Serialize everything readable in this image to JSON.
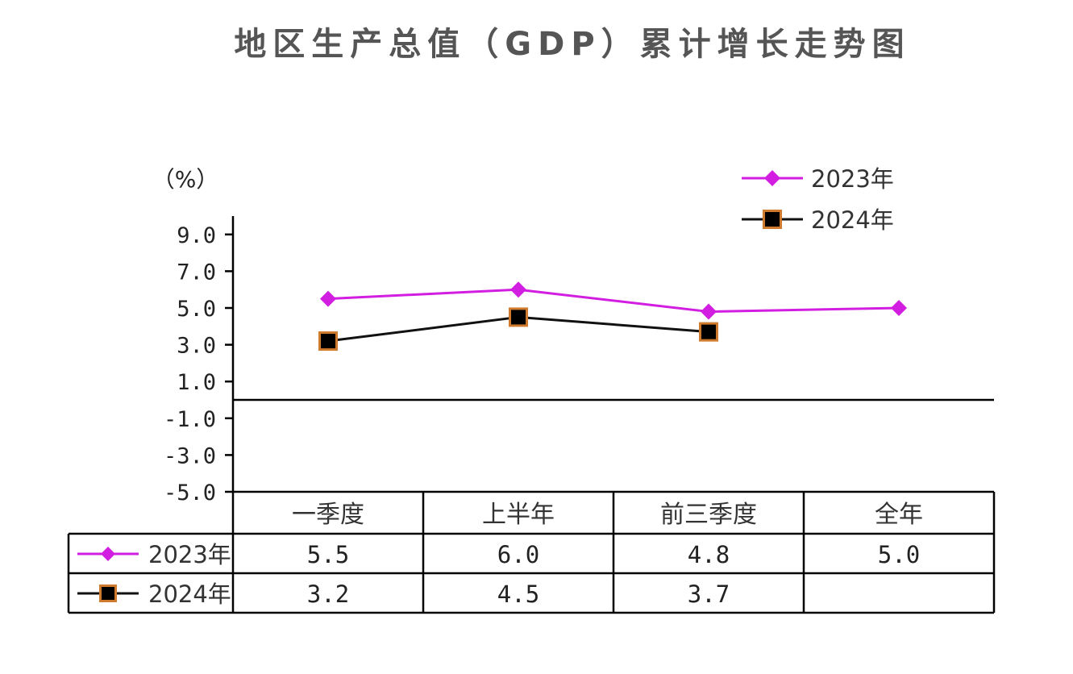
{
  "title": "地区生产总值（GDP）累计增长走势图",
  "unit_label": "（%）",
  "colors": {
    "series_2023": "#d21ee0",
    "series_2024_line": "#111111",
    "series_2024_marker_fill": "#000000",
    "series_2024_marker_border": "#d07a2e",
    "axis": "#000000",
    "title": "#555555"
  },
  "chart_data": {
    "type": "line",
    "title": "地区生产总值（GDP）累计增长走势图",
    "ylabel": "（%）",
    "categories": [
      "一季度",
      "上半年",
      "前三季度",
      "全年"
    ],
    "ylim": [
      -5.0,
      10.0
    ],
    "yticks": [
      "9.0",
      "7.0",
      "5.0",
      "3.0",
      "1.0",
      "-1.0",
      "-3.0",
      "-5.0"
    ],
    "ytick_values": [
      9.0,
      7.0,
      5.0,
      3.0,
      1.0,
      -1.0,
      -3.0,
      -5.0
    ],
    "grid": false,
    "legend_position": "top-right",
    "series": [
      {
        "name": "2023年",
        "marker": "diamond",
        "values": [
          5.5,
          6.0,
          4.8,
          5.0
        ],
        "labels": [
          "5.5",
          "6.0",
          "4.8",
          "5.0"
        ]
      },
      {
        "name": "2024年",
        "marker": "square",
        "values": [
          3.2,
          4.5,
          3.7,
          null
        ],
        "labels": [
          "3.2",
          "4.5",
          "3.7",
          ""
        ]
      }
    ]
  }
}
